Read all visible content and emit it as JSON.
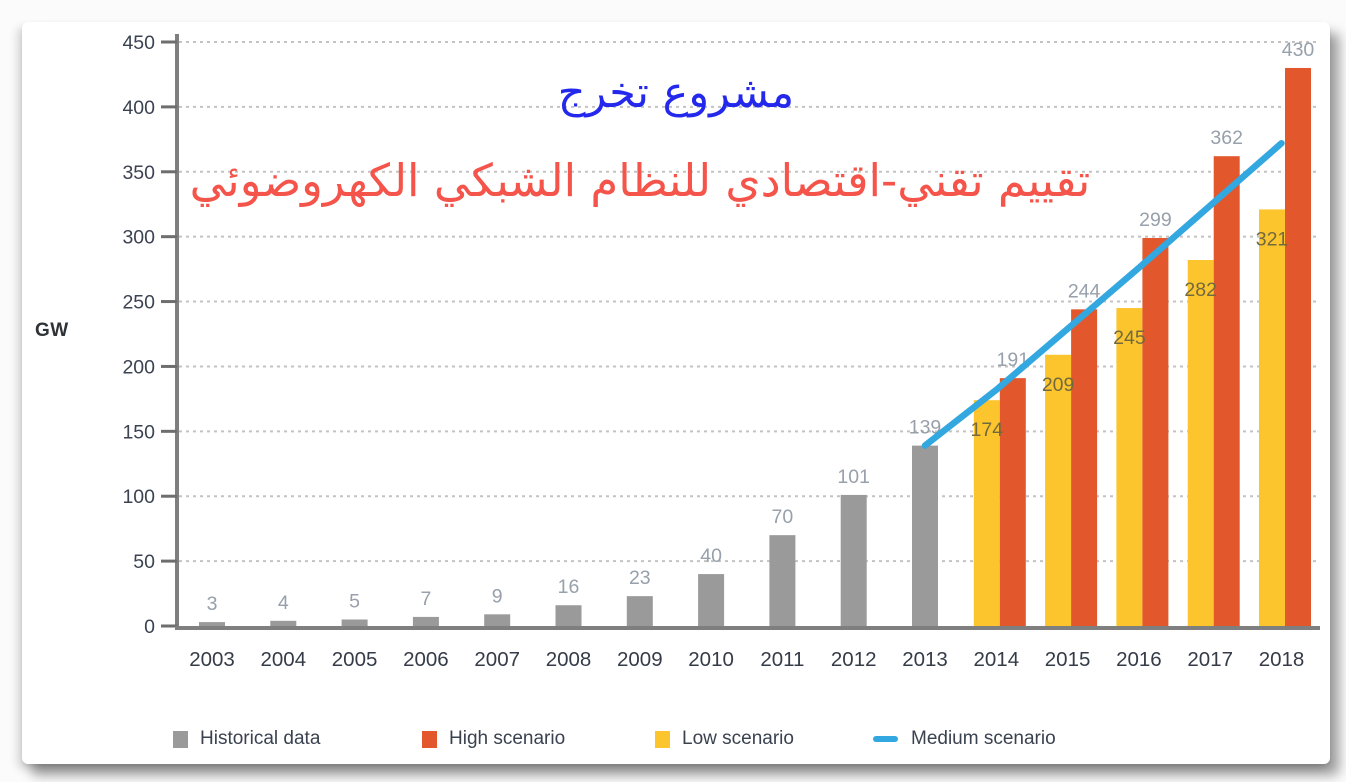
{
  "page": {
    "background": "#fbfbfb",
    "card_background": "#ffffff"
  },
  "titles": {
    "project": {
      "text": "مشروع تخرج",
      "color": "#2328ec"
    },
    "subtitle": {
      "text": "تقييم تقني-اقتصادي للنظام الشبكي الكهروضوئي",
      "color": "#f4544a"
    }
  },
  "chart_data": {
    "type": "bar",
    "title": "",
    "xlabel": "",
    "ylabel": "GW",
    "ylim": [
      0,
      450
    ],
    "ytick_step": 50,
    "grid": "horizontal-dotted",
    "legend_position": "bottom",
    "axis_color": "#7f7f7f",
    "grid_color": "#c3c3c3",
    "categories": [
      "2003",
      "2004",
      "2005",
      "2006",
      "2007",
      "2008",
      "2009",
      "2010",
      "2011",
      "2012",
      "2013",
      "2014",
      "2015",
      "2016",
      "2017",
      "2018"
    ],
    "series": [
      {
        "name": "Historical data",
        "role": "historical",
        "type": "bar",
        "color": "#9a9a9a",
        "label_color": "#97a0ab",
        "label_position": "above",
        "values": [
          3,
          4,
          5,
          7,
          9,
          16,
          23,
          40,
          70,
          101,
          139,
          null,
          null,
          null,
          null,
          null
        ]
      },
      {
        "name": "High scenario",
        "role": "high",
        "type": "bar",
        "color": "#e2572b",
        "label_color": "#97a0ab",
        "label_position": "above",
        "values": [
          null,
          null,
          null,
          null,
          null,
          null,
          null,
          null,
          null,
          null,
          null,
          191,
          244,
          299,
          362,
          430
        ]
      },
      {
        "name": "Low scenario",
        "role": "low",
        "type": "bar",
        "color": "#fcc52d",
        "label_color": "#72693f",
        "label_position": "inside",
        "values": [
          null,
          null,
          null,
          null,
          null,
          null,
          null,
          null,
          null,
          null,
          null,
          174,
          209,
          245,
          282,
          321
        ]
      },
      {
        "name": "Medium scenario",
        "role": "medium",
        "type": "line",
        "color": "#33a7df",
        "label_position": "none",
        "values": [
          null,
          null,
          null,
          null,
          null,
          null,
          null,
          null,
          null,
          null,
          139,
          182,
          229,
          276,
          324,
          372
        ]
      }
    ]
  },
  "legend": {
    "items": [
      {
        "label": "Historical data",
        "color": "#9a9a9a",
        "marker": "square"
      },
      {
        "label": "High scenario",
        "color": "#e2572b",
        "marker": "square"
      },
      {
        "label": "Low scenario",
        "color": "#fcc52d",
        "marker": "square"
      },
      {
        "label": "Medium scenario",
        "color": "#33a7df",
        "marker": "line"
      }
    ]
  }
}
